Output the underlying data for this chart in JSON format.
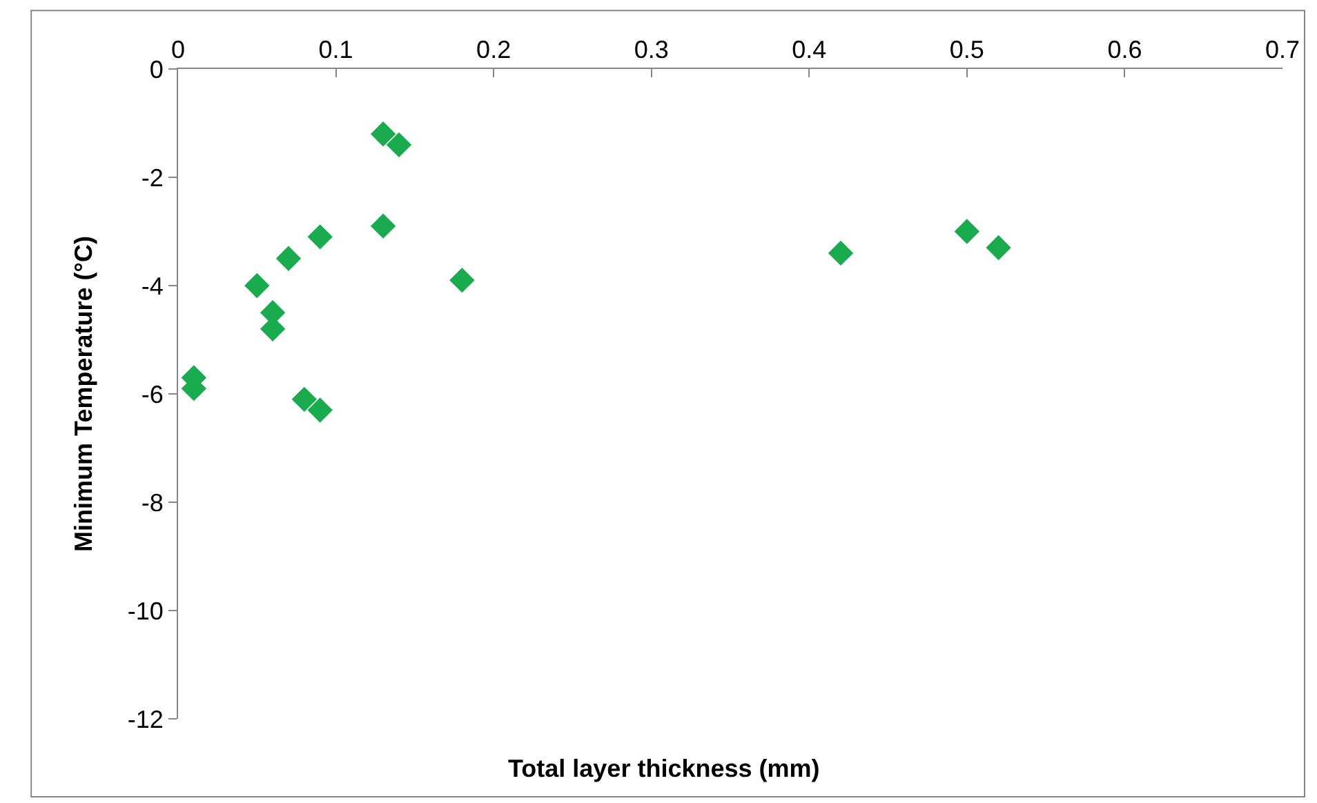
{
  "chart_data": {
    "type": "scatter",
    "xlabel": "Total layer thickness (mm)",
    "ylabel": "Minimum Temperature (°C)",
    "x": [
      0.01,
      0.01,
      0.05,
      0.06,
      0.06,
      0.07,
      0.08,
      0.09,
      0.09,
      0.13,
      0.14,
      0.13,
      0.18,
      0.42,
      0.5,
      0.52
    ],
    "series": [
      {
        "color": "#1aab4f",
        "values": [
          -5.7,
          -5.9,
          -4.0,
          -4.5,
          -4.8,
          -3.5,
          -6.1,
          -6.3,
          -3.1,
          -1.2,
          -1.4,
          -2.9,
          -3.9,
          -3.4,
          -3.0,
          -3.3
        ]
      }
    ],
    "marker": "diamond",
    "xlim": [
      0,
      0.7
    ],
    "xticks": [
      0,
      0.1,
      0.2,
      0.3,
      0.4,
      0.5,
      0.6,
      0.7
    ],
    "ylim": [
      -12,
      0
    ],
    "yticks": [
      -12,
      -10,
      -8,
      -6,
      -4,
      -2,
      0
    ]
  }
}
